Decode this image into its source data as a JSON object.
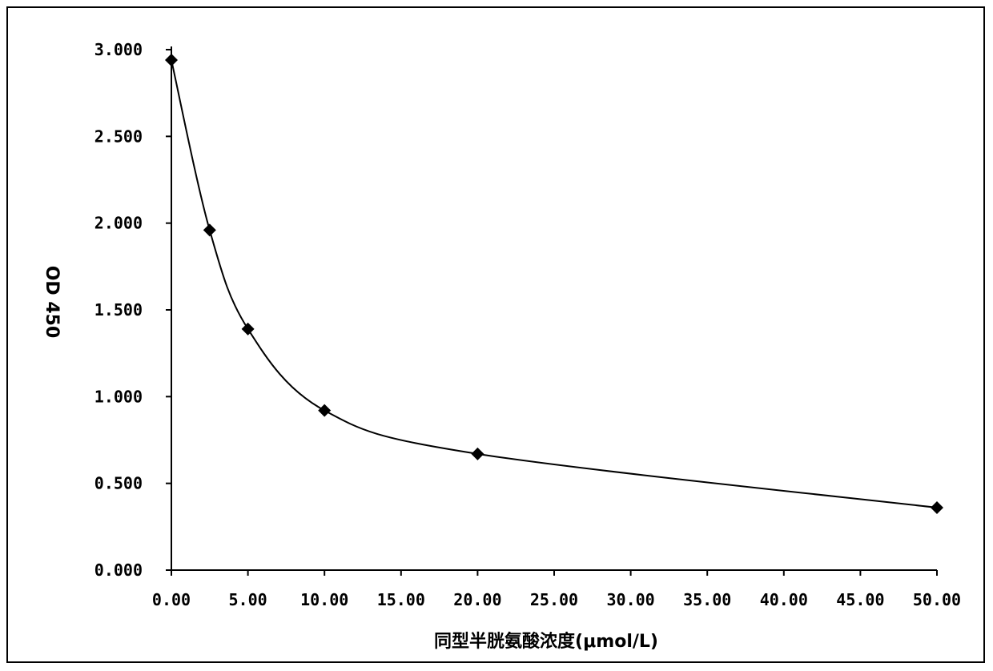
{
  "chart_data": {
    "type": "scatter",
    "title": "",
    "xlabel": "同型半胱氨酸浓度(μmol/L)",
    "ylabel": "OD 450",
    "xlim": [
      0,
      50
    ],
    "ylim": [
      0,
      3
    ],
    "x_ticks": [
      "0.00",
      "5.00",
      "10.00",
      "15.00",
      "20.00",
      "25.00",
      "30.00",
      "35.00",
      "40.00",
      "45.00",
      "50.00"
    ],
    "y_ticks": [
      "0.000",
      "0.500",
      "1.000",
      "1.500",
      "2.000",
      "2.500",
      "3.000"
    ],
    "series": [
      {
        "x": [
          0,
          2.5,
          5,
          10,
          20,
          50
        ],
        "y": [
          2.94,
          1.96,
          1.39,
          0.92,
          0.67,
          0.36
        ],
        "marker": "diamond",
        "line": "smooth",
        "color": "#000000"
      }
    ],
    "grid": false,
    "legend": "none"
  }
}
